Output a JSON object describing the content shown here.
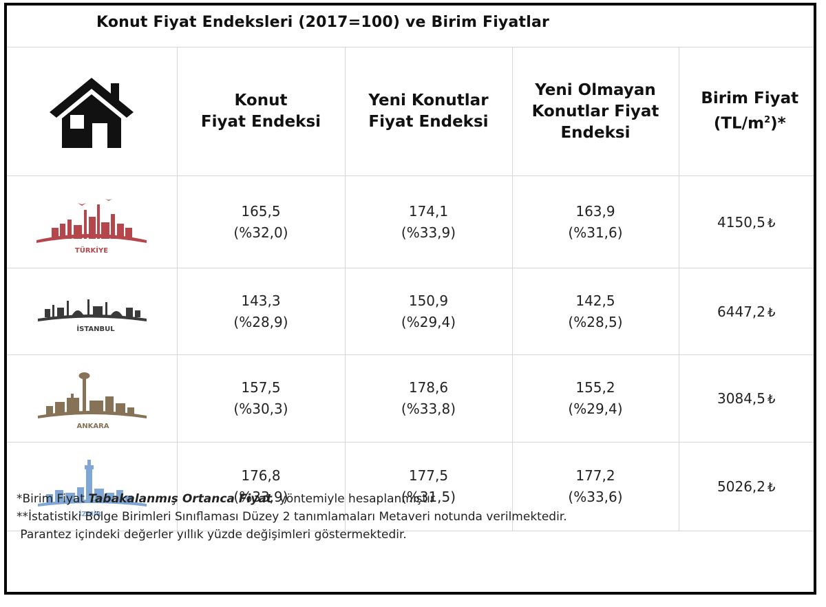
{
  "title": "Konut Fiyat Endeksleri (2017=100) ve Birim Fiyatlar",
  "header": {
    "icon": "house-icon",
    "col1": [
      "Konut",
      "Fiyat Endeksi"
    ],
    "col2": [
      "Yeni Konutlar",
      "Fiyat Endeksi"
    ],
    "col3": [
      "Yeni Olmayan",
      "Konutlar Fiyat",
      "Endeksi"
    ],
    "col4_line1": "Birim Fiyat",
    "col4_line2_pre": "(TL/m",
    "col4_sup": "2",
    "col4_line2_post": ")*"
  },
  "colors": {
    "turkiye": "#b5464b",
    "istanbul": "#3a3a3a",
    "ankara": "#857257",
    "izmir": "#7fa6d4"
  },
  "rows": [
    {
      "city": "TÜRKİYE",
      "konut": "165,5",
      "konut_chg": "(%32,0)",
      "yeni": "174,1",
      "yeni_chg": "(%33,9)",
      "eski": "163,9",
      "eski_chg": "(%31,6)",
      "birim": "4150,5",
      "currency": "₺"
    },
    {
      "city": "İSTANBUL",
      "konut": "143,3",
      "konut_chg": "(%28,9)",
      "yeni": "150,9",
      "yeni_chg": "(%29,4)",
      "eski": "142,5",
      "eski_chg": "(%28,5)",
      "birim": "6447,2",
      "currency": "₺"
    },
    {
      "city": "ANKARA",
      "konut": "157,5",
      "konut_chg": "(%30,3)",
      "yeni": "178,6",
      "yeni_chg": "(%33,8)",
      "eski": "155,2",
      "eski_chg": "(%29,4)",
      "birim": "3084,5",
      "currency": "₺"
    },
    {
      "city": "İZMİR",
      "konut": "176,8",
      "konut_chg": "(%33,9)",
      "yeni": "177,5",
      "yeni_chg": "(%31,5)",
      "eski": "177,2",
      "eski_chg": "(%33,6)",
      "birim": "5026,2",
      "currency": "₺"
    }
  ],
  "footer": {
    "line1_pre": "*Birim Fiyat ",
    "line1_italic": "Tabakalanmış Ortanca Fiyat",
    "line1_post": "  yöntemiyle hesaplanmıştır",
    "line2": "**İstatistiki Bölge Birimleri Sınıflaması Düzey 2 tanımlamaları Metaveri notunda verilmektedir.",
    "line3": " Parantez içindeki değerler yıllık yüzde değişimleri göstermektedir."
  }
}
